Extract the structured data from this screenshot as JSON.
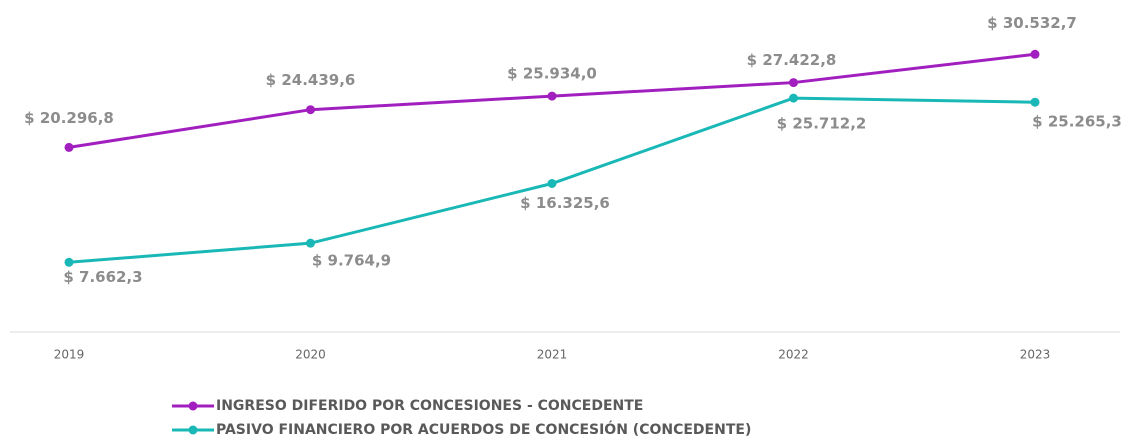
{
  "chart_data": {
    "type": "line",
    "categories": [
      "2019",
      "2020",
      "2021",
      "2022",
      "2023"
    ],
    "ylim": [
      0,
      36500
    ],
    "series": [
      {
        "name": "INGRESO DIFERIDO POR CONCESIONES - CONCEDENTE",
        "color": "#a21fbf",
        "values": [
          20296.8,
          24439.6,
          25934.0,
          27422.8,
          30532.7
        ],
        "value_labels": [
          "$ 20.296,8",
          "$ 24.439,6",
          "$ 25.934,0",
          "$ 27.422,8",
          "$ 30.532,7"
        ]
      },
      {
        "name": "PASIVO FINANCIERO POR ACUERDOS DE CONCESIÓN (CONCEDENTE)",
        "color": "#19b8b6",
        "values": [
          7662.3,
          9764.9,
          16325.6,
          25712.2,
          25265.3
        ],
        "value_labels": [
          "$ 7.662,3",
          "$ 9.764,9",
          "$ 16.325,6",
          "$ 25.712,2",
          "$ 25.265,3"
        ]
      }
    ]
  }
}
